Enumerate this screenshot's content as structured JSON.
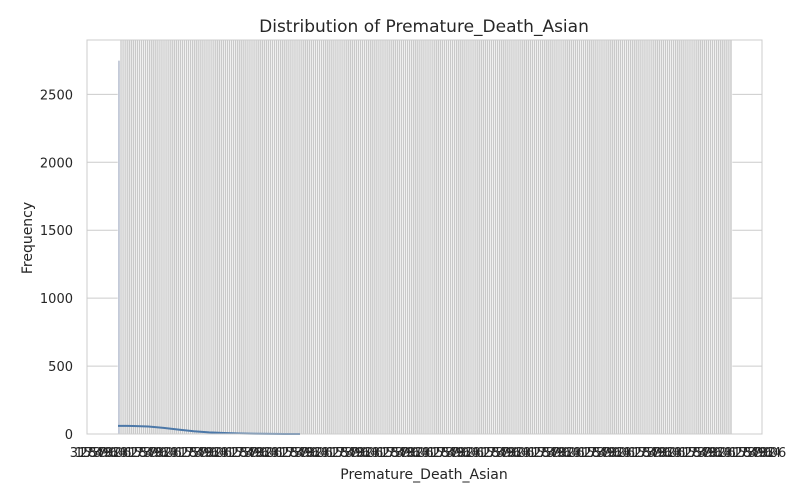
{
  "chart_data": {
    "type": "bar",
    "title": "Distribution of Premature_Death_Asian",
    "xlabel": "Premature_Death_Asian",
    "ylabel": "Frequency",
    "ylim": [
      0,
      2900
    ],
    "yticks": [
      0,
      500,
      1000,
      1500,
      2000,
      2500
    ],
    "grid": true,
    "x_tick_labels_note": "dense overlapping category labels (illegible)",
    "bins": {
      "count": 300,
      "tall_bar_index": 0,
      "tall_bar_value": 2750,
      "filled_background_value": 2900
    },
    "kde_curve": {
      "values": [
        60,
        59,
        55,
        45,
        32,
        20,
        12,
        7,
        4,
        2,
        1,
        0,
        0
      ]
    },
    "colors": {
      "bar_fill": "#c9c9c9",
      "bar_edge": "#ffffff",
      "tall_bar": "#aab4c8",
      "kde_line": "#4c78a8",
      "grid": "#cccccc",
      "frame": "#cccccc"
    }
  }
}
